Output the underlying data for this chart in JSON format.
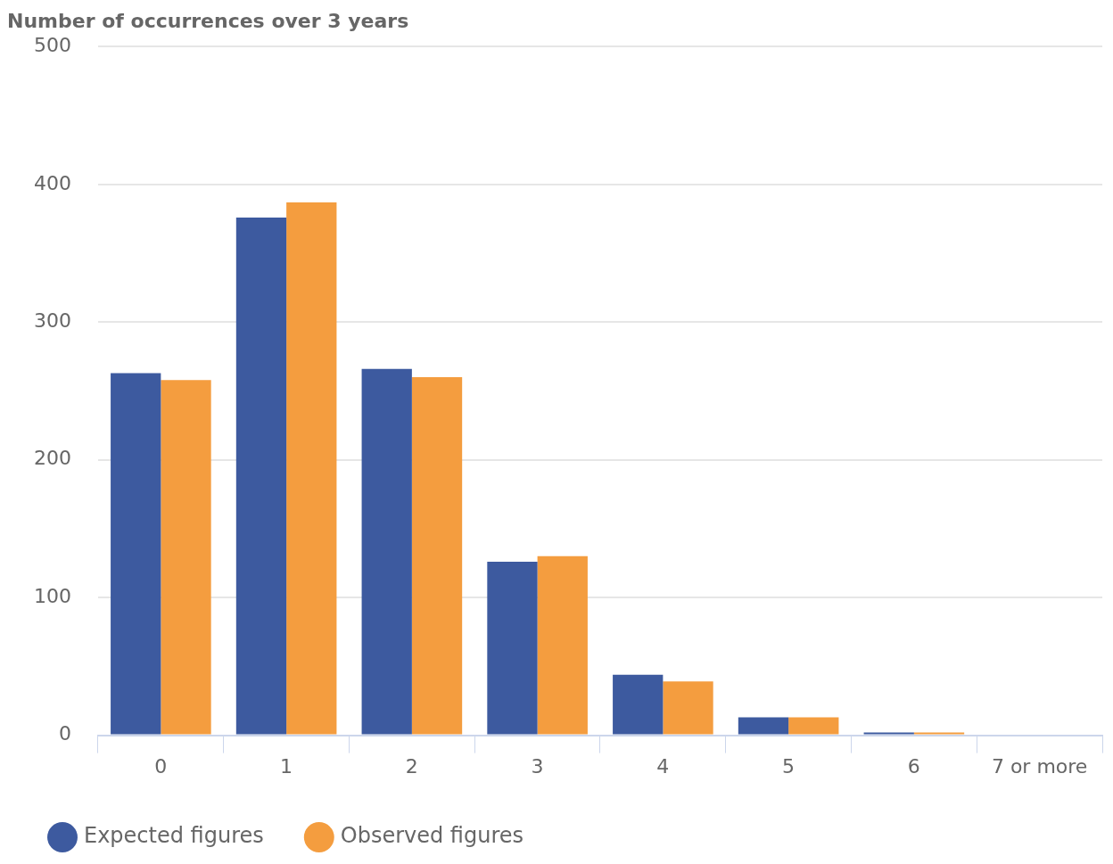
{
  "chart_data": {
    "type": "bar",
    "title": "Number of occurrences over 3 years",
    "categories": [
      "0",
      "1",
      "2",
      "3",
      "4",
      "5",
      "6",
      "7 or more"
    ],
    "series": [
      {
        "name": "Expected figures",
        "color": "#3d5a9f",
        "values": [
          263,
          376,
          266,
          126,
          44,
          13,
          2,
          0
        ]
      },
      {
        "name": "Observed figures",
        "color": "#f49d3f",
        "values": [
          258,
          387,
          260,
          130,
          39,
          13,
          2,
          0
        ]
      }
    ],
    "ylim": [
      0,
      500
    ],
    "yticks": [
      0,
      100,
      200,
      300,
      400,
      500
    ],
    "grid": "y",
    "legend": "bottom left"
  }
}
